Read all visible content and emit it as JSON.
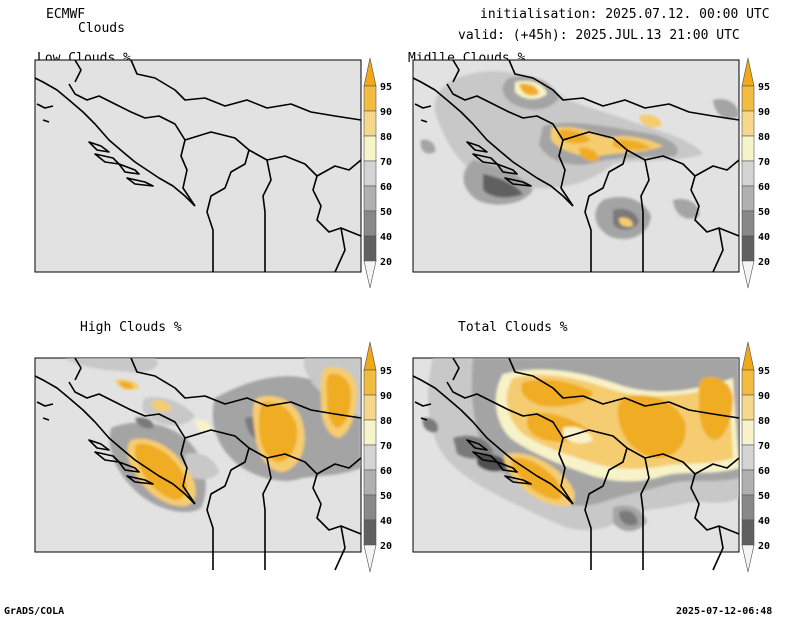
{
  "header": {
    "model": "ECMWF",
    "product": "Clouds",
    "initialisation": "initialisation: 2025.07.12. 00:00 UTC",
    "valid": "valid: (+45h): 2025.JUL.13 21:00 UTC"
  },
  "panels": [
    {
      "title": "Low Clouds %"
    },
    {
      "title": "Midlle Clouds %"
    },
    {
      "title": "High Clouds %"
    },
    {
      "title": "Total Clouds %"
    }
  ],
  "colorbar": {
    "ticks": [
      "95",
      "90",
      "80",
      "70",
      "60",
      "50",
      "40",
      "20"
    ],
    "colors": [
      "#f0a818",
      "#f2bc40",
      "#f6d88c",
      "#f6f4c8",
      "#d4d4d4",
      "#b0b0b0",
      "#888888",
      "#606060",
      "#f4f4f4"
    ]
  },
  "footer": {
    "left": "GrADS/COLA",
    "right": "2025-07-12-06:48"
  },
  "colors": {
    "background_map": "#e2e2e2",
    "coast": "#000000",
    "orange": "#f0ac20",
    "light_orange": "#f5cc70",
    "cream": "#f7f2c8",
    "grey_light": "#c8c8c8",
    "grey_mid": "#a4a4a4",
    "grey_dark": "#7a7a7a",
    "grey_darkest": "#505050"
  }
}
